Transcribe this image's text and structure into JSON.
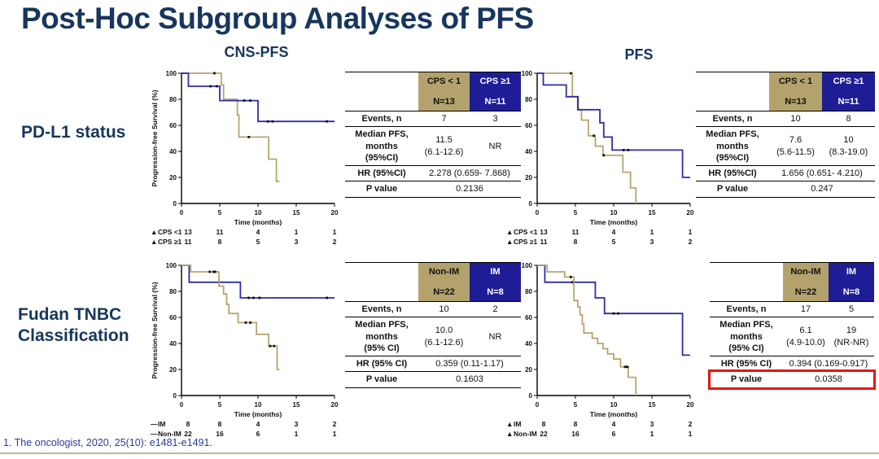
{
  "title": "Post-Hoc Subgroup Analyses of PFS",
  "columns": {
    "left": "CNS-PFS",
    "right": "PFS"
  },
  "row_labels": {
    "row1": "PD-L1 status",
    "row2": "Fudan TNBC\nClassification"
  },
  "footer": {
    "reference": "1. The oncologist, 2020, 25(10): e1481-e1491."
  },
  "colors": {
    "title_navy": "#17365d",
    "table_navy": "#1f1d96",
    "table_tan": "#b3a26c",
    "curve_blue": "#2d2da8",
    "curve_tan": "#b5a56e",
    "highlight_red": "#e8150d",
    "footer_blue": "#2d3d99"
  },
  "tables": [
    {
      "h1a": "CPS < 1",
      "h1b": "N=13",
      "h2a": "CPS ≥1",
      "h2b": "N=11",
      "rows": [
        {
          "label": "Events, n",
          "v1": "7",
          "v2": "3"
        },
        {
          "label": "Median PFS,\nmonths\n(95%CI)",
          "v1": "11.5\n(6.1-12.6)",
          "v2": "NR"
        },
        {
          "label": "HR (95%CI)",
          "value": "2.278 (0.659- 7.868)"
        },
        {
          "label": "P value",
          "value": "0.2136"
        }
      ]
    },
    {
      "h1a": "CPS < 1",
      "h1b": "N=13",
      "h2a": "CPS ≥1",
      "h2b": "N=11",
      "rows": [
        {
          "label": "Events, n",
          "v1": "10",
          "v2": "8"
        },
        {
          "label": "Median PFS,\nmonths\n(95%CI)",
          "v1": "7.6\n(5.6-11.5)",
          "v2": "10\n(8.3-19.0)"
        },
        {
          "label": "HR (95%CI)",
          "value": "1.656 (0.651- 4.210)"
        },
        {
          "label": "P value",
          "value": "0.247"
        }
      ]
    },
    {
      "h1a": "Non-IM",
      "h1b": "N=22",
      "h2a": "IM",
      "h2b": "N=8",
      "rows": [
        {
          "label": "Events, n",
          "v1": "10",
          "v2": "2"
        },
        {
          "label": "Median PFS,\nmonths\n(95% CI)",
          "v1": "10.0\n(6.1-12.6)",
          "v2": "NR"
        },
        {
          "label": "HR (95% CI)",
          "value": "0.359 (0.11-1.17)"
        },
        {
          "label": "P value",
          "value": "0.1603"
        }
      ]
    },
    {
      "h1a": "Non-IM",
      "h1b": "N=22",
      "h2a": "IM",
      "h2b": "N=8",
      "rows": [
        {
          "label": "Events, n",
          "v1": "17",
          "v2": "5"
        },
        {
          "label": "Median PFS,\nmonths\n(95% CI)",
          "v1": "6.1\n(4.9-10.0)",
          "v2": "19\n(NR-NR)"
        },
        {
          "label": "HR (95% CI)",
          "value": "0.394 (0.169-0.917)"
        },
        {
          "label": "P value",
          "value": "0.0358",
          "highlighted": true
        }
      ]
    }
  ],
  "chart_data": [
    {
      "id": "cns-pfs-pdl1",
      "panel": "CNS-PFS",
      "subgroup": "PD-L1 status",
      "type": "line",
      "step": true,
      "xlabel": "Time (months)",
      "ylabel": "Progression-free Survival (%)",
      "xlim": [
        0,
        20
      ],
      "ylim": [
        0,
        100
      ],
      "xticks": [
        0,
        5,
        10,
        15,
        20
      ],
      "yticks": [
        0,
        20,
        40,
        60,
        80,
        100
      ],
      "series": [
        {
          "name": "CPS <1",
          "color": "#b5a56e",
          "marker": "▲",
          "points": [
            [
              0,
              100
            ],
            [
              5.2,
              100
            ],
            [
              5.2,
              91
            ],
            [
              5.5,
              91
            ],
            [
              5.5,
              80
            ],
            [
              7.3,
              80
            ],
            [
              7.3,
              68
            ],
            [
              7.5,
              68
            ],
            [
              7.5,
              51
            ],
            [
              11.4,
              51
            ],
            [
              11.4,
              34
            ],
            [
              12.4,
              34
            ],
            [
              12.4,
              17
            ],
            [
              12.8,
              17
            ]
          ],
          "censors": [
            [
              4.3,
              100
            ],
            [
              8.8,
              51
            ]
          ],
          "at_risk": [
            13,
            11,
            4,
            1,
            1
          ]
        },
        {
          "name": "CPS ≥1",
          "color": "#2d2da8",
          "marker": "▲",
          "points": [
            [
              0,
              100
            ],
            [
              0.9,
              100
            ],
            [
              0.9,
              90
            ],
            [
              5,
              90
            ],
            [
              5,
              79
            ],
            [
              10,
              79
            ],
            [
              10,
              63
            ],
            [
              20,
              63
            ]
          ],
          "censors": [
            [
              3.8,
              90
            ],
            [
              4.6,
              90
            ],
            [
              8.2,
              79
            ],
            [
              9,
              79
            ],
            [
              11.3,
              63
            ],
            [
              11.9,
              63
            ],
            [
              19,
              63
            ]
          ],
          "at_risk": [
            11,
            8,
            5,
            3,
            2
          ]
        }
      ]
    },
    {
      "id": "pfs-pdl1",
      "panel": "PFS",
      "subgroup": "PD-L1 status",
      "type": "line",
      "step": true,
      "xlabel": "Time (months)",
      "ylabel": "Progression-free Survival (%)",
      "xlim": [
        0,
        20
      ],
      "ylim": [
        0,
        100
      ],
      "xticks": [
        0,
        5,
        10,
        15,
        20
      ],
      "yticks": [
        0,
        20,
        40,
        60,
        80,
        100
      ],
      "series": [
        {
          "name": "CPS <1",
          "color": "#b5a56e",
          "marker": "▲",
          "points": [
            [
              0,
              100
            ],
            [
              4.6,
              100
            ],
            [
              4.6,
              82
            ],
            [
              5.4,
              82
            ],
            [
              5.4,
              72
            ],
            [
              5.8,
              72
            ],
            [
              5.8,
              64
            ],
            [
              6.7,
              64
            ],
            [
              6.7,
              52
            ],
            [
              7.6,
              52
            ],
            [
              7.6,
              44
            ],
            [
              8.6,
              44
            ],
            [
              8.6,
              37
            ],
            [
              11.2,
              37
            ],
            [
              11.2,
              24
            ],
            [
              12.2,
              24
            ],
            [
              12.2,
              12
            ],
            [
              12.9,
              12
            ],
            [
              12.9,
              0
            ]
          ],
          "censors": [
            [
              4.4,
              100
            ],
            [
              7.4,
              52
            ],
            [
              8.7,
              37
            ]
          ],
          "at_risk": [
            13,
            11,
            4,
            1,
            1
          ]
        },
        {
          "name": "CPS ≥1",
          "color": "#2d2da8",
          "marker": "▲",
          "points": [
            [
              0,
              100
            ],
            [
              0.8,
              100
            ],
            [
              0.8,
              91
            ],
            [
              3.8,
              91
            ],
            [
              3.8,
              82
            ],
            [
              5.3,
              82
            ],
            [
              5.3,
              72
            ],
            [
              8.2,
              72
            ],
            [
              8.2,
              62
            ],
            [
              8.7,
              62
            ],
            [
              8.7,
              51
            ],
            [
              9.8,
              51
            ],
            [
              9.8,
              41
            ],
            [
              19,
              41
            ],
            [
              19,
              20
            ],
            [
              20,
              20
            ]
          ],
          "censors": [
            [
              11.3,
              41
            ],
            [
              11.9,
              41
            ]
          ],
          "at_risk": [
            11,
            8,
            5,
            3,
            2
          ]
        }
      ]
    },
    {
      "id": "cns-pfs-fudan",
      "panel": "CNS-PFS",
      "subgroup": "Fudan TNBC Classification",
      "type": "line",
      "step": true,
      "xlabel": "Time (months)",
      "ylabel": "Progression-free Survival (%)",
      "xlim": [
        0,
        20
      ],
      "ylim": [
        0,
        100
      ],
      "xticks": [
        0,
        5,
        10,
        15,
        20
      ],
      "yticks": [
        0,
        20,
        40,
        60,
        80,
        100
      ],
      "series": [
        {
          "name": "IM",
          "color": "#2d2da8",
          "marker": "—",
          "points": [
            [
              0,
              100
            ],
            [
              1,
              100
            ],
            [
              1,
              87
            ],
            [
              7.7,
              87
            ],
            [
              7.7,
              75
            ],
            [
              20,
              75
            ]
          ],
          "censors": [
            [
              8.8,
              75
            ],
            [
              9.4,
              75
            ],
            [
              10.2,
              75
            ],
            [
              19,
              75
            ]
          ],
          "at_risk": [
            8,
            8,
            4,
            3,
            2
          ]
        },
        {
          "name": "Non-IM",
          "color": "#b5a56e",
          "marker": "—",
          "points": [
            [
              0,
              100
            ],
            [
              1.2,
              100
            ],
            [
              1.2,
              95
            ],
            [
              4.9,
              95
            ],
            [
              4.9,
              84
            ],
            [
              5.5,
              84
            ],
            [
              5.5,
              78
            ],
            [
              5.9,
              78
            ],
            [
              5.9,
              70
            ],
            [
              6.2,
              70
            ],
            [
              6.2,
              63
            ],
            [
              7.4,
              63
            ],
            [
              7.4,
              56
            ],
            [
              9.8,
              56
            ],
            [
              9.8,
              47
            ],
            [
              11.4,
              47
            ],
            [
              11.4,
              38
            ],
            [
              12.5,
              38
            ],
            [
              12.5,
              20
            ],
            [
              12.8,
              20
            ]
          ],
          "censors": [
            [
              3.7,
              95
            ],
            [
              4.2,
              95
            ],
            [
              4.4,
              95
            ],
            [
              8.4,
              56
            ],
            [
              9,
              56
            ],
            [
              11.6,
              38
            ],
            [
              12.1,
              38
            ]
          ],
          "at_risk": [
            22,
            16,
            6,
            1,
            1
          ]
        }
      ]
    },
    {
      "id": "pfs-fudan",
      "panel": "PFS",
      "subgroup": "Fudan TNBC Classification",
      "type": "line",
      "step": true,
      "xlabel": "Time (months)",
      "ylabel": "Progression-free Survival (%)",
      "xlim": [
        0,
        20
      ],
      "ylim": [
        0,
        100
      ],
      "xticks": [
        0,
        5,
        10,
        15,
        20
      ],
      "yticks": [
        0,
        20,
        40,
        60,
        80,
        100
      ],
      "series": [
        {
          "name": "IM",
          "color": "#2d2da8",
          "marker": "▲",
          "points": [
            [
              0,
              100
            ],
            [
              1,
              100
            ],
            [
              1,
              87
            ],
            [
              7.6,
              87
            ],
            [
              7.6,
              75
            ],
            [
              8.8,
              75
            ],
            [
              8.8,
              63
            ],
            [
              19,
              63
            ],
            [
              19,
              31
            ],
            [
              20,
              31
            ]
          ],
          "censors": [
            [
              4.6,
              87
            ],
            [
              10,
              63
            ],
            [
              10.6,
              63
            ]
          ],
          "at_risk": [
            8,
            8,
            4,
            3,
            2
          ]
        },
        {
          "name": "Non-IM",
          "color": "#b5a56e",
          "marker": "▲",
          "points": [
            [
              0,
              100
            ],
            [
              1.3,
              100
            ],
            [
              1.3,
              95
            ],
            [
              3.6,
              95
            ],
            [
              3.6,
              91
            ],
            [
              4.8,
              91
            ],
            [
              4.8,
              73
            ],
            [
              5.3,
              73
            ],
            [
              5.3,
              68
            ],
            [
              5.6,
              68
            ],
            [
              5.6,
              62
            ],
            [
              5.9,
              62
            ],
            [
              5.9,
              55
            ],
            [
              6.1,
              55
            ],
            [
              6.1,
              48
            ],
            [
              7.2,
              48
            ],
            [
              7.2,
              44
            ],
            [
              7.9,
              44
            ],
            [
              7.9,
              40
            ],
            [
              8.6,
              40
            ],
            [
              8.6,
              36
            ],
            [
              9.2,
              36
            ],
            [
              9.2,
              32
            ],
            [
              10,
              32
            ],
            [
              10,
              28
            ],
            [
              10.9,
              28
            ],
            [
              10.9,
              22
            ],
            [
              11.9,
              22
            ],
            [
              11.9,
              14
            ],
            [
              12.9,
              14
            ],
            [
              12.9,
              0
            ]
          ],
          "censors": [
            [
              4.4,
              91
            ],
            [
              11.5,
              22
            ],
            [
              11.8,
              22
            ]
          ],
          "at_risk": [
            22,
            16,
            6,
            1,
            1
          ]
        }
      ]
    }
  ]
}
